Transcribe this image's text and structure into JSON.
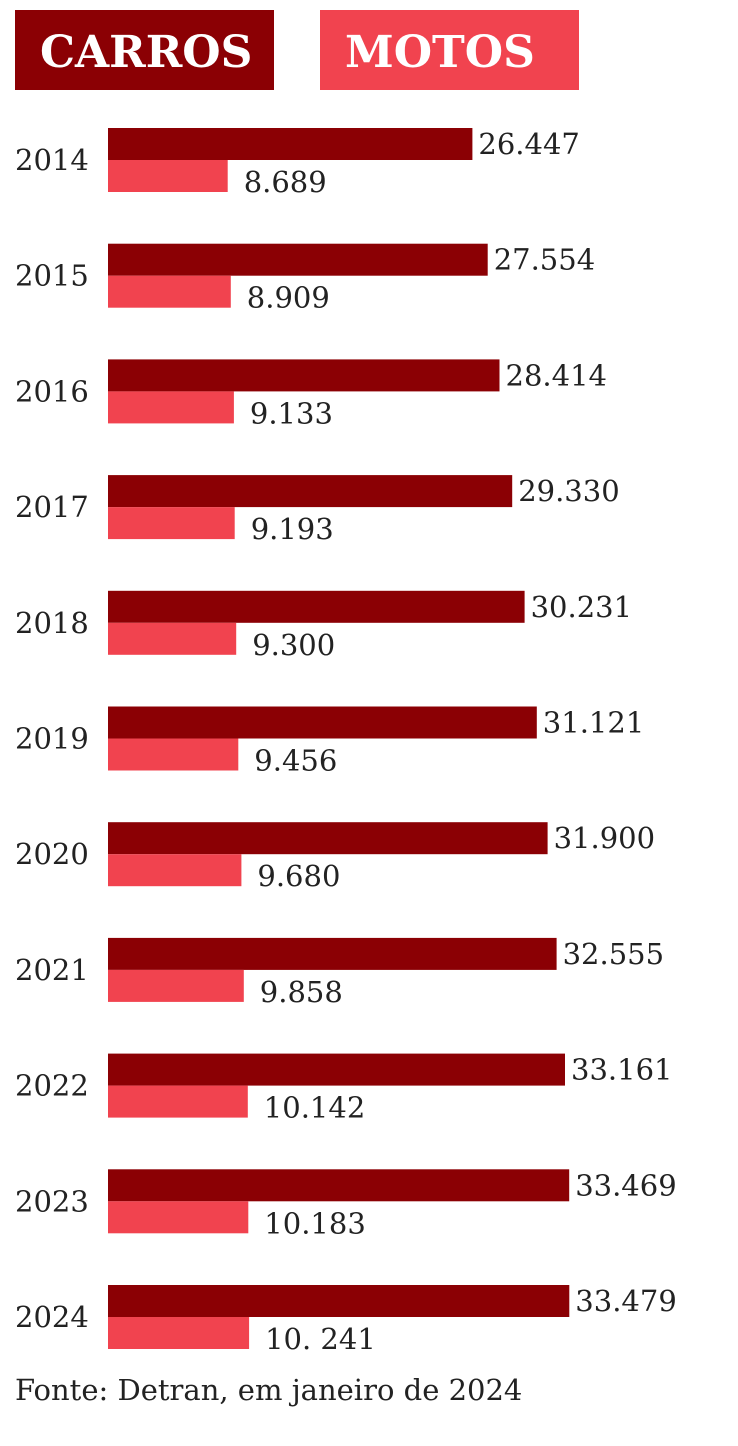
{
  "chart_data": {
    "type": "bar",
    "orientation": "horizontal",
    "categories": [
      "2014",
      "2015",
      "2016",
      "2017",
      "2018",
      "2019",
      "2020",
      "2021",
      "2022",
      "2023",
      "2024"
    ],
    "series": [
      {
        "name": "CARROS",
        "color": "#8b0004",
        "values": [
          26447,
          27554,
          28414,
          29330,
          30231,
          31121,
          31900,
          32555,
          33161,
          33469,
          33479
        ],
        "labels": [
          "26.447",
          "27.554",
          "28.414",
          "29.330",
          "30.231",
          "31.121",
          "31.900",
          "32.555",
          "33.161",
          "33.469",
          "33.479"
        ]
      },
      {
        "name": "MOTOS",
        "color": "#f1434f",
        "values": [
          8689,
          8909,
          9133,
          9193,
          9300,
          9456,
          9680,
          9858,
          10142,
          10183,
          10241
        ],
        "labels": [
          "8.689",
          "8.909",
          "9.133",
          "9.193",
          "9.300",
          "9.456",
          "9.680",
          "9.858",
          "10.142",
          "10.183",
          "10. 241"
        ]
      }
    ],
    "legend_position": "top",
    "grid": false,
    "title": "",
    "xlabel": "",
    "ylabel": ""
  },
  "source": "Fonte: Detran, em janeiro de 2024"
}
